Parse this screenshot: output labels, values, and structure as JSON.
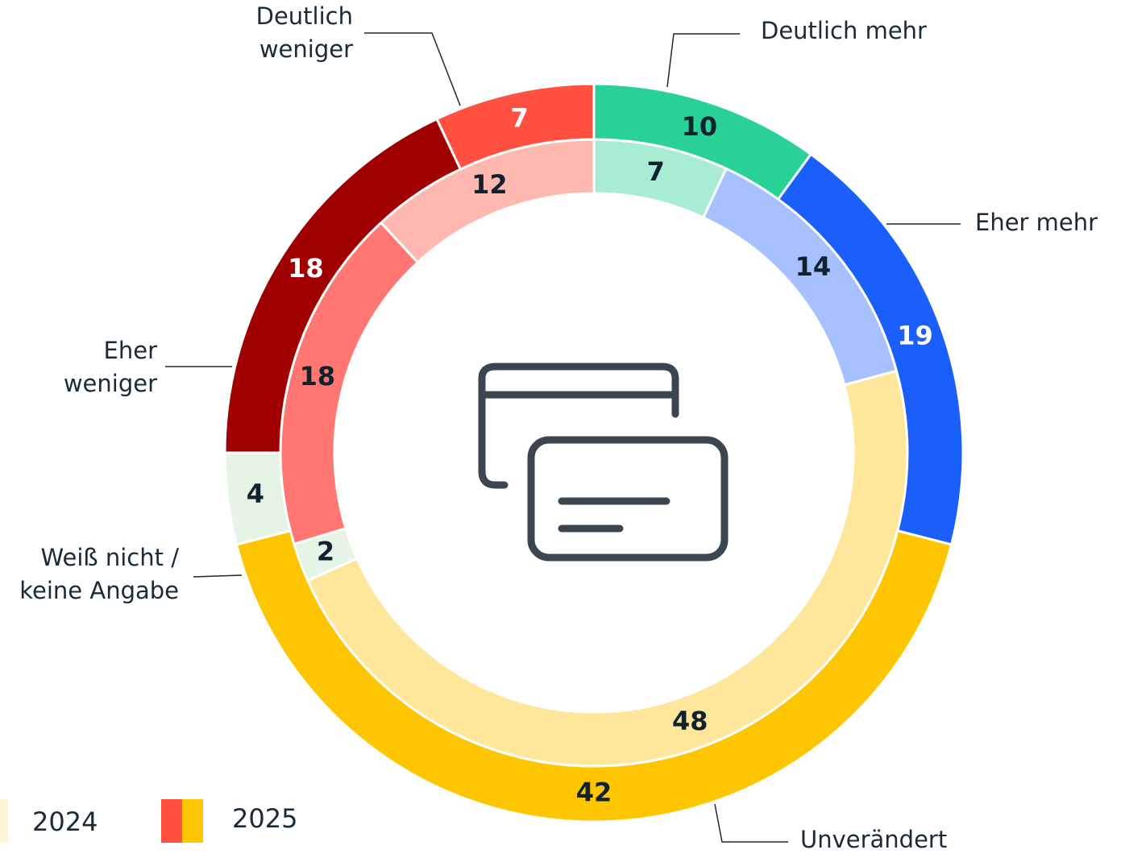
{
  "chart_data": {
    "type": "donut",
    "categories": [
      "Deutlich mehr",
      "Eher mehr",
      "Unverändert",
      "Weiß nicht / keine Angabe",
      "Eher weniger",
      "Deutlich weniger"
    ],
    "series": [
      {
        "name": "2024",
        "values": [
          7,
          14,
          48,
          2,
          18,
          12
        ],
        "colors": [
          "#a8ecd4",
          "#a7c0ff",
          "#fee79a",
          "#e6f4e6",
          "#ff7672",
          "#ffb8b0"
        ]
      },
      {
        "name": "2025",
        "values": [
          10,
          19,
          42,
          4,
          18,
          7
        ],
        "colors": [
          "#2ad196",
          "#1a5ffb",
          "#fec600",
          "#e6f4e6",
          "#a00000",
          "#ff5040"
        ]
      }
    ]
  }
}
